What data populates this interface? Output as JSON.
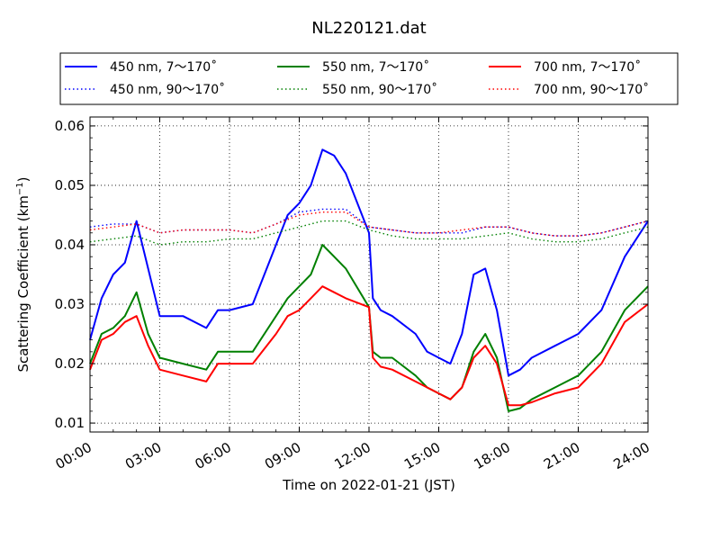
{
  "chart_data": {
    "type": "line",
    "title": "NL220121.dat",
    "xlabel": "Time on 2022-01-21 (JST)",
    "ylabel_main": "Scattering Coefficient (km",
    "ylabel_sup": "−1",
    "ylabel_tail": ")",
    "xlim": [
      "00:00",
      "24:00"
    ],
    "ylim": [
      0.0085,
      0.0615
    ],
    "x_ticks": [
      "00:00",
      "03:00",
      "06:00",
      "09:00",
      "12:00",
      "15:00",
      "18:00",
      "21:00",
      "24:00"
    ],
    "y_ticks": [
      "0.01",
      "0.02",
      "0.03",
      "0.04",
      "0.05",
      "0.06"
    ],
    "grid": true,
    "legend": {
      "placement": "top",
      "columns": 3
    },
    "series": [
      {
        "name": "450 nm, 7～170˚",
        "color": "#0000ff",
        "style": "solid",
        "x": [
          "00:00",
          "00:30",
          "01:00",
          "01:30",
          "02:00",
          "02:30",
          "03:00",
          "04:00",
          "05:00",
          "05:30",
          "06:00",
          "07:00",
          "08:00",
          "08:30",
          "09:00",
          "09:30",
          "10:00",
          "10:30",
          "11:00",
          "12:00",
          "12:10",
          "12:30",
          "13:00",
          "14:00",
          "14:30",
          "15:00",
          "15:30",
          "16:00",
          "16:30",
          "17:00",
          "17:30",
          "18:00",
          "18:30",
          "19:00",
          "20:00",
          "21:00",
          "22:00",
          "23:00",
          "24:00"
        ],
        "y": [
          0.024,
          0.031,
          0.035,
          0.037,
          0.044,
          0.036,
          0.028,
          0.028,
          0.026,
          0.029,
          0.029,
          0.03,
          0.04,
          0.045,
          0.047,
          0.05,
          0.056,
          0.055,
          0.052,
          0.042,
          0.031,
          0.029,
          0.028,
          0.025,
          0.022,
          0.021,
          0.02,
          0.025,
          0.035,
          0.036,
          0.029,
          0.018,
          0.019,
          0.021,
          0.023,
          0.025,
          0.029,
          0.038,
          0.044
        ]
      },
      {
        "name": "450 nm, 90～170˚",
        "color": "#0000ff",
        "style": "dotted",
        "x": [
          "00:00",
          "01:00",
          "02:00",
          "03:00",
          "04:00",
          "05:00",
          "06:00",
          "07:00",
          "08:00",
          "09:00",
          "10:00",
          "11:00",
          "12:00",
          "13:00",
          "14:00",
          "15:00",
          "16:00",
          "17:00",
          "18:00",
          "19:00",
          "20:00",
          "21:00",
          "22:00",
          "23:00",
          "24:00"
        ],
        "y": [
          0.043,
          0.0435,
          0.0435,
          0.042,
          0.0425,
          0.0425,
          0.0425,
          0.042,
          0.0435,
          0.0455,
          0.046,
          0.046,
          0.043,
          0.0425,
          0.042,
          0.042,
          0.042,
          0.043,
          0.043,
          0.042,
          0.0415,
          0.0415,
          0.042,
          0.043,
          0.044
        ]
      },
      {
        "name": "550 nm, 7～170˚",
        "color": "#008000",
        "style": "solid",
        "x": [
          "00:00",
          "00:30",
          "01:00",
          "01:30",
          "02:00",
          "02:30",
          "03:00",
          "04:00",
          "05:00",
          "05:30",
          "06:00",
          "07:00",
          "08:00",
          "08:30",
          "09:00",
          "09:30",
          "10:00",
          "10:30",
          "11:00",
          "12:00",
          "12:10",
          "12:30",
          "13:00",
          "14:00",
          "14:30",
          "15:00",
          "15:30",
          "16:00",
          "16:30",
          "17:00",
          "17:30",
          "18:00",
          "18:30",
          "19:00",
          "20:00",
          "21:00",
          "22:00",
          "23:00",
          "24:00"
        ],
        "y": [
          0.02,
          0.025,
          0.026,
          0.028,
          0.032,
          0.025,
          0.021,
          0.02,
          0.019,
          0.022,
          0.022,
          0.022,
          0.028,
          0.031,
          0.033,
          0.035,
          0.04,
          0.038,
          0.036,
          0.0295,
          0.022,
          0.021,
          0.021,
          0.018,
          0.016,
          0.015,
          0.014,
          0.016,
          0.022,
          0.025,
          0.021,
          0.012,
          0.0125,
          0.014,
          0.016,
          0.018,
          0.022,
          0.029,
          0.033
        ]
      },
      {
        "name": "550 nm, 90～170˚",
        "color": "#008000",
        "style": "dotted",
        "x": [
          "00:00",
          "01:00",
          "02:00",
          "03:00",
          "04:00",
          "05:00",
          "06:00",
          "07:00",
          "08:00",
          "09:00",
          "10:00",
          "11:00",
          "12:00",
          "13:00",
          "14:00",
          "15:00",
          "16:00",
          "17:00",
          "18:00",
          "19:00",
          "20:00",
          "21:00",
          "22:00",
          "23:00",
          "24:00"
        ],
        "y": [
          0.0405,
          0.041,
          0.0415,
          0.04,
          0.0405,
          0.0405,
          0.041,
          0.041,
          0.042,
          0.043,
          0.044,
          0.044,
          0.0425,
          0.0415,
          0.041,
          0.041,
          0.041,
          0.0415,
          0.042,
          0.041,
          0.0405,
          0.0405,
          0.041,
          0.042,
          0.043
        ]
      },
      {
        "name": "700 nm, 7～170˚",
        "color": "#ff0000",
        "style": "solid",
        "x": [
          "00:00",
          "00:30",
          "01:00",
          "01:30",
          "02:00",
          "02:30",
          "03:00",
          "04:00",
          "05:00",
          "05:30",
          "06:00",
          "07:00",
          "08:00",
          "08:30",
          "09:00",
          "09:30",
          "10:00",
          "10:30",
          "11:00",
          "12:00",
          "12:10",
          "12:30",
          "13:00",
          "14:00",
          "14:30",
          "15:00",
          "15:30",
          "16:00",
          "16:30",
          "17:00",
          "17:30",
          "18:00",
          "18:30",
          "19:00",
          "20:00",
          "21:00",
          "22:00",
          "23:00",
          "24:00"
        ],
        "y": [
          0.019,
          0.024,
          0.025,
          0.027,
          0.028,
          0.023,
          0.019,
          0.018,
          0.017,
          0.02,
          0.02,
          0.02,
          0.025,
          0.028,
          0.029,
          0.031,
          0.033,
          0.032,
          0.031,
          0.0295,
          0.021,
          0.0195,
          0.019,
          0.017,
          0.016,
          0.015,
          0.014,
          0.016,
          0.021,
          0.023,
          0.02,
          0.013,
          0.013,
          0.0135,
          0.015,
          0.016,
          0.02,
          0.027,
          0.03
        ]
      },
      {
        "name": "700 nm, 90～170˚",
        "color": "#ff0000",
        "style": "dotted",
        "x": [
          "00:00",
          "01:00",
          "02:00",
          "03:00",
          "04:00",
          "05:00",
          "06:00",
          "07:00",
          "08:00",
          "09:00",
          "10:00",
          "11:00",
          "12:00",
          "13:00",
          "14:00",
          "15:00",
          "16:00",
          "17:00",
          "18:00",
          "19:00",
          "20:00",
          "21:00",
          "22:00",
          "23:00",
          "24:00"
        ],
        "y": [
          0.0425,
          0.043,
          0.0435,
          0.042,
          0.0425,
          0.0425,
          0.0425,
          0.042,
          0.0435,
          0.045,
          0.0455,
          0.0455,
          0.043,
          0.0425,
          0.042,
          0.042,
          0.0425,
          0.043,
          0.043,
          0.042,
          0.0415,
          0.0415,
          0.042,
          0.043,
          0.044
        ]
      }
    ]
  }
}
